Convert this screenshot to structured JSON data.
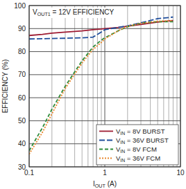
{
  "chart_data": {
    "type": "line",
    "title": "VOUT1 = 12V EFFICIENCY",
    "x_label": "IOUT (A)",
    "y_label": "EFFICIENCY (%)",
    "log": "x",
    "grid": true,
    "legend": "lower right",
    "xlim": [
      0.1,
      10
    ],
    "xticks": [
      0.1,
      1,
      10
    ],
    "ylim": [
      30,
      100
    ],
    "yticks": [
      30,
      40,
      50,
      60,
      70,
      80,
      90,
      100
    ],
    "x": [
      0.1,
      0.15,
      0.2,
      0.3,
      0.5,
      0.7,
      0.9,
      1,
      1.5,
      2,
      3,
      5,
      8
    ],
    "series": [
      {
        "name": "VIN = 8V BURST",
        "color": "#9e1b32",
        "line_style": "solid",
        "values": [
          87,
          87.5,
          88,
          88.5,
          89,
          89.5,
          89.8,
          90,
          90.5,
          91,
          91.8,
          92.8,
          93.5
        ]
      },
      {
        "name": "VIN = 36V BURST",
        "color": "#1f4e9c",
        "line_style": "dashed",
        "values": [
          85.5,
          85.6,
          85.7,
          85.8,
          86,
          86.3,
          88.5,
          89.5,
          90.5,
          91.2,
          92.5,
          94.3,
          95
        ]
      },
      {
        "name": "VIN = 8V FCM",
        "color": "#2e8b3a",
        "line_style": "dashed",
        "values": [
          37,
          47,
          55,
          65,
          76,
          82,
          85,
          86,
          89,
          90.8,
          92.3,
          93,
          93
        ]
      },
      {
        "name": "VIN = 36V FCM",
        "color": "#e8862a",
        "line_style": "dotted",
        "values": [
          35.5,
          45,
          53,
          64,
          75,
          81,
          84,
          85.5,
          89,
          91,
          92.3,
          93.2,
          93.5
        ]
      }
    ]
  }
}
